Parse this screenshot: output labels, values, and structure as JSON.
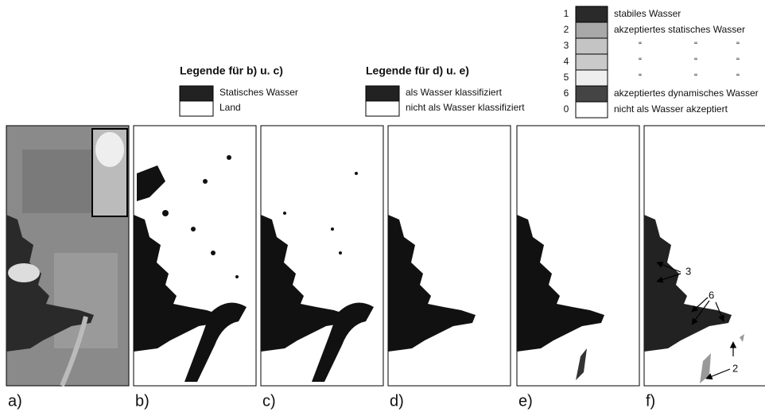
{
  "legend_bc": {
    "title": "Legende für b) u. c)",
    "items": [
      "Statisches Wasser",
      "Land"
    ]
  },
  "legend_de": {
    "title": "Legende für d) u. e)",
    "items": [
      "als Wasser klassifiziert",
      "nicht als Wasser klassifiziert"
    ]
  },
  "legend_f": {
    "rows": [
      {
        "code": "1",
        "label": "stabiles Wasser"
      },
      {
        "code": "2",
        "label": "akzeptiertes statisches Wasser"
      },
      {
        "code": "3",
        "label": [
          "“",
          "“",
          "“"
        ]
      },
      {
        "code": "4",
        "label": [
          "“",
          "“",
          "“"
        ]
      },
      {
        "code": "5",
        "label": [
          "“",
          "“",
          "“"
        ]
      },
      {
        "code": "6",
        "label": "akzeptiertes dynamisches Wasser"
      },
      {
        "code": "0",
        "label": "nicht als Wasser akzeptiert"
      }
    ]
  },
  "panels": [
    "a)",
    "b)",
    "c)",
    "d)",
    "e)",
    "f)"
  ],
  "annotations": [
    "3",
    "6",
    "2"
  ]
}
